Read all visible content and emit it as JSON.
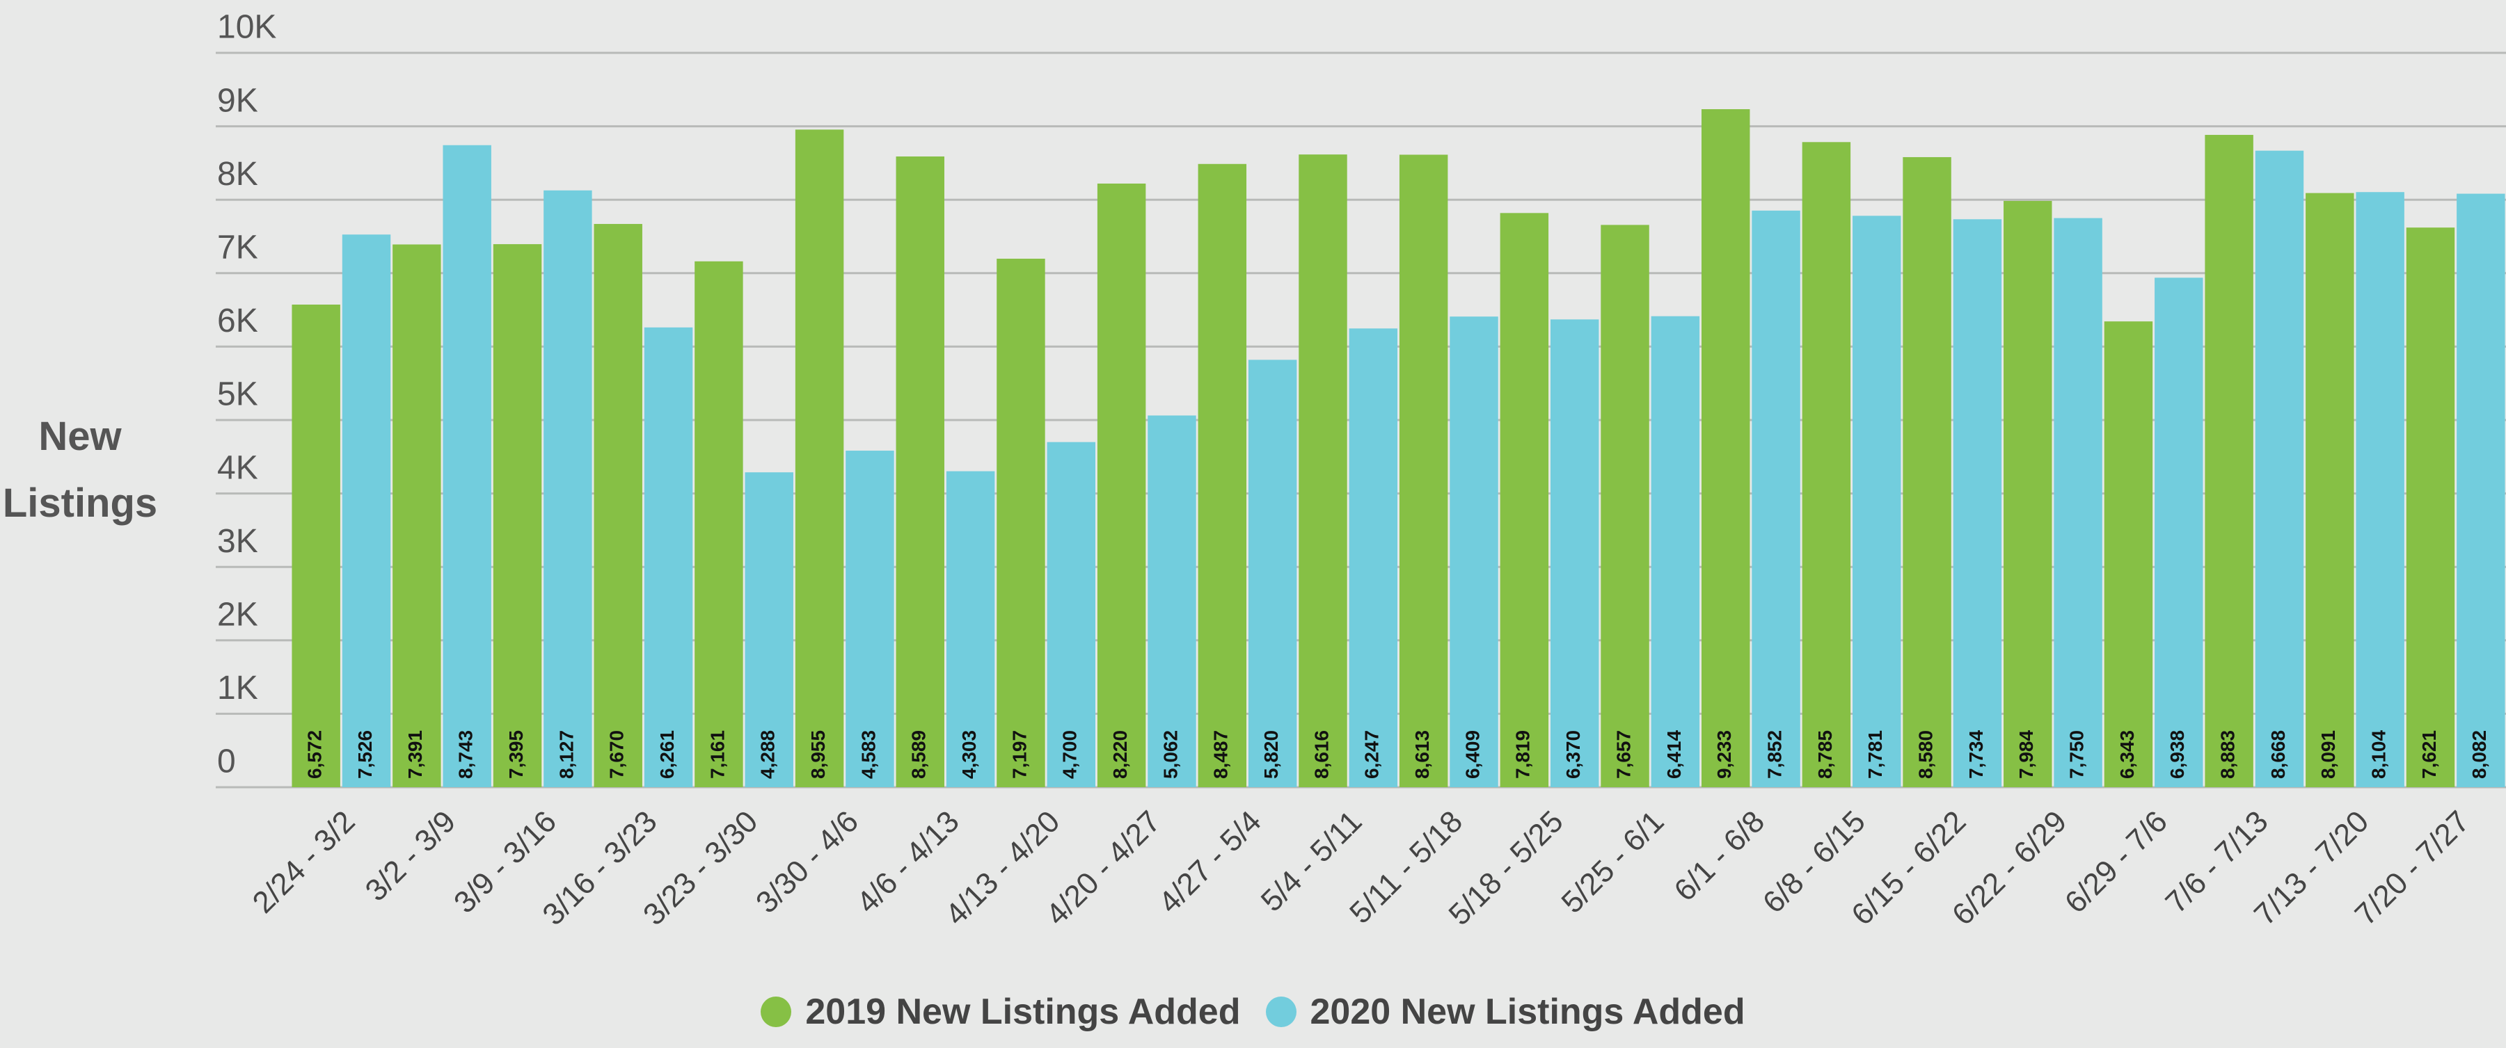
{
  "chart_data": {
    "type": "bar",
    "y_label": "New Listings",
    "categories": [
      "2/24 - 3/2",
      "3/2 - 3/9",
      "3/9 - 3/16",
      "3/16 - 3/23",
      "3/23 - 3/30",
      "3/30 - 4/6",
      "4/6 - 4/13",
      "4/13 - 4/20",
      "4/20 - 4/27",
      "4/27 - 5/4",
      "5/4 - 5/11",
      "5/11 - 5/18",
      "5/18 - 5/25",
      "5/25 - 6/1",
      "6/1 - 6/8",
      "6/8 - 6/15",
      "6/15 - 6/22",
      "6/22 - 6/29",
      "6/29 - 7/6",
      "7/6 - 7/13",
      "7/13 - 7/20",
      "7/20 - 7/27"
    ],
    "series": [
      {
        "name": "2019 New Listings Added",
        "color": "#86c045",
        "values": [
          6572,
          7391,
          7395,
          7670,
          7161,
          8955,
          8589,
          7197,
          8220,
          8487,
          8616,
          8613,
          7819,
          7657,
          9233,
          8785,
          8580,
          7984,
          6343,
          8883,
          8091,
          7621
        ],
        "value_labels": [
          "6,572",
          "7,391",
          "7,395",
          "7,670",
          "7,161",
          "8,955",
          "8,589",
          "7,197",
          "8,220",
          "8,487",
          "8,616",
          "8,613",
          "7,819",
          "7,657",
          "9,233",
          "8,785",
          "8,580",
          "7,984",
          "6,343",
          "8,883",
          "8,091",
          "7,621"
        ]
      },
      {
        "name": "2020 New Listings Added",
        "color": "#72cddd",
        "values": [
          7526,
          8743,
          8127,
          6261,
          4288,
          4583,
          4303,
          4700,
          5062,
          5820,
          6247,
          6409,
          6370,
          6414,
          7852,
          7781,
          7734,
          7750,
          6938,
          8668,
          8104,
          8082
        ],
        "value_labels": [
          "7,526",
          "8,743",
          "8,127",
          "6,261",
          "4,288",
          "4,583",
          "4,303",
          "4,700",
          "5,062",
          "5,820",
          "6,247",
          "6,409",
          "6,370",
          "6,414",
          "7,852",
          "7,781",
          "7,734",
          "7,750",
          "6,938",
          "8,668",
          "8,104",
          "8,082"
        ]
      }
    ],
    "ylim": [
      0,
      10000
    ],
    "yticks": [
      0,
      {
        "value": 1000,
        "label": "1K"
      },
      {
        "value": 2000,
        "label": "2K"
      },
      {
        "value": 3000,
        "label": "3K"
      },
      {
        "value": 4000,
        "label": "4K"
      },
      {
        "value": 5000,
        "label": "5K"
      },
      {
        "value": 6000,
        "label": "6K"
      },
      {
        "value": 7000,
        "label": "7K"
      },
      {
        "value": 8000,
        "label": "8K"
      },
      {
        "value": 9000,
        "label": "9K"
      },
      {
        "value": 10000,
        "label": "10K"
      }
    ],
    "grid": true
  }
}
